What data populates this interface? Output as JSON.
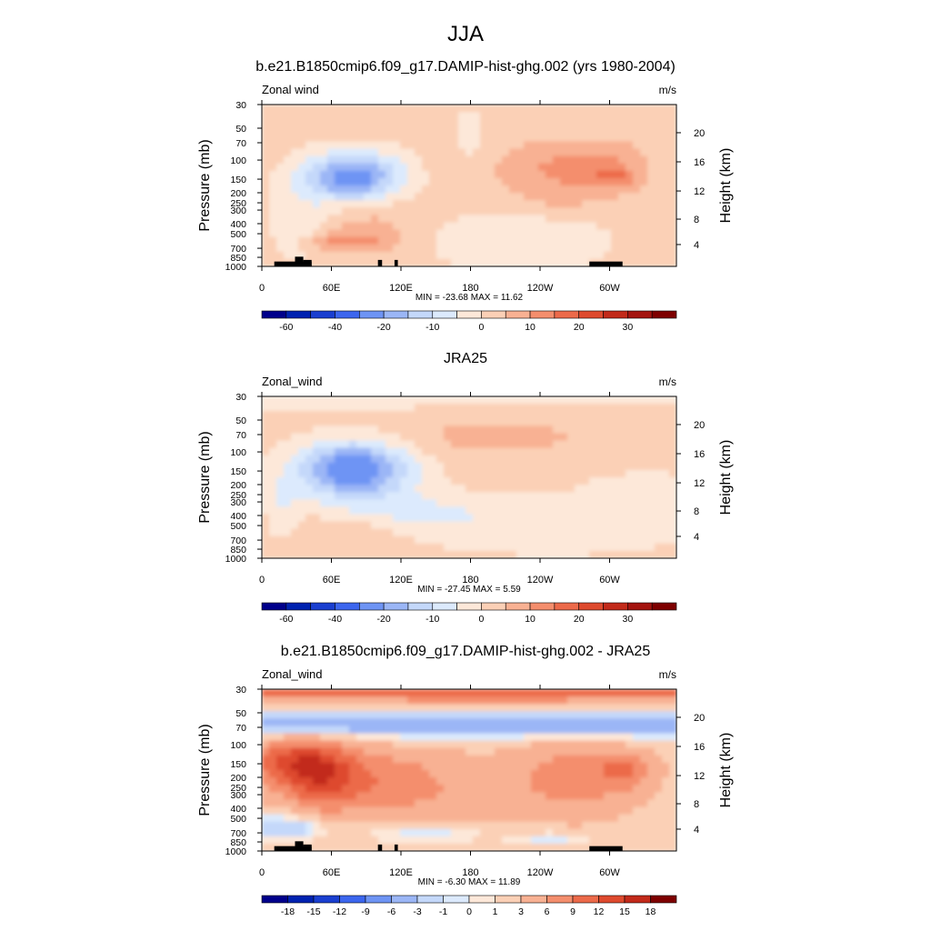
{
  "page_title": "JJA",
  "chart_data": [
    {
      "type": "heatmap",
      "title": "b.e21.B1850cmip6.f09_g17.DAMIP-hist-ghg.002 (yrs 1980-2004)",
      "left_label": "Zonal wind",
      "right_label": "m/s",
      "ylabel": "Pressure (mb)",
      "ylabel_right": "Height (km)",
      "x_ticks": [
        "0",
        "60E",
        "120E",
        "180",
        "120W",
        "60W"
      ],
      "y_ticks": [
        "30",
        "50",
        "70",
        "100",
        "150",
        "200",
        "250",
        "300",
        "400",
        "500",
        "700",
        "850",
        "1000"
      ],
      "y_right_ticks": [
        "20",
        "16",
        "12",
        "8",
        "4"
      ],
      "stats": "MIN = -23.68  MAX =  11.62",
      "min": -23.68,
      "max": 11.62,
      "colorbar_labels": [
        "-60",
        "-40",
        "-20",
        "-10",
        "0",
        "10",
        "20",
        "30"
      ],
      "colorbar_colors": [
        "#00008b",
        "#0022b0",
        "#1a3fd0",
        "#3c66ee",
        "#6e94f4",
        "#9bb6f6",
        "#c4d8fa",
        "#dceafd",
        "#fde8d9",
        "#fbd0b6",
        "#f8b193",
        "#f48e6d",
        "#ec6a4a",
        "#de4a2e",
        "#c22a1a",
        "#a4140f",
        "#7e0000"
      ],
      "colorbar_boundaries": [
        -70,
        -60,
        -50,
        -40,
        -30,
        -20,
        -15,
        -10,
        -5,
        0,
        5,
        10,
        15,
        20,
        25,
        30,
        35
      ]
    },
    {
      "type": "heatmap",
      "title": "JRA25",
      "left_label": "Zonal_wind",
      "right_label": "m/s",
      "ylabel": "Pressure (mb)",
      "ylabel_right": "Height (km)",
      "x_ticks": [
        "0",
        "60E",
        "120E",
        "180",
        "120W",
        "60W"
      ],
      "y_ticks": [
        "30",
        "50",
        "70",
        "100",
        "150",
        "200",
        "250",
        "300",
        "400",
        "500",
        "700",
        "850",
        "1000"
      ],
      "y_right_ticks": [
        "20",
        "16",
        "12",
        "8",
        "4"
      ],
      "stats": "MIN = -27.45  MAX =   5.59",
      "min": -27.45,
      "max": 5.59,
      "colorbar_labels": [
        "-60",
        "-40",
        "-20",
        "-10",
        "0",
        "10",
        "20",
        "30"
      ],
      "colorbar_colors": [
        "#00008b",
        "#0022b0",
        "#1a3fd0",
        "#3c66ee",
        "#6e94f4",
        "#9bb6f6",
        "#c4d8fa",
        "#dceafd",
        "#fde8d9",
        "#fbd0b6",
        "#f8b193",
        "#f48e6d",
        "#ec6a4a",
        "#de4a2e",
        "#c22a1a",
        "#a4140f",
        "#7e0000"
      ],
      "colorbar_boundaries": [
        -70,
        -60,
        -50,
        -40,
        -30,
        -20,
        -15,
        -10,
        -5,
        0,
        5,
        10,
        15,
        20,
        25,
        30,
        35
      ]
    },
    {
      "type": "heatmap",
      "title": "b.e21.B1850cmip6.f09_g17.DAMIP-hist-ghg.002 - JRA25",
      "left_label": "Zonal_wind",
      "right_label": "m/s",
      "ylabel": "Pressure (mb)",
      "ylabel_right": "Height (km)",
      "x_ticks": [
        "0",
        "60E",
        "120E",
        "180",
        "120W",
        "60W"
      ],
      "y_ticks": [
        "30",
        "50",
        "70",
        "100",
        "150",
        "200",
        "250",
        "300",
        "400",
        "500",
        "700",
        "850",
        "1000"
      ],
      "y_right_ticks": [
        "20",
        "16",
        "12",
        "8",
        "4"
      ],
      "stats": "MIN =  -6.30  MAX =  11.89",
      "min": -6.3,
      "max": 11.89,
      "colorbar_labels": [
        "-18",
        "-15",
        "-12",
        "-9",
        "-6",
        "-3",
        "-1",
        "0",
        "1",
        "3",
        "6",
        "9",
        "12",
        "15",
        "18"
      ],
      "colorbar_colors": [
        "#00008b",
        "#0022b0",
        "#1a3fd0",
        "#3c66ee",
        "#6e94f4",
        "#9bb6f6",
        "#c4d8fa",
        "#dceafd",
        "#fde8d9",
        "#fbd0b6",
        "#f8b193",
        "#f48e6d",
        "#ec6a4a",
        "#de4a2e",
        "#c22a1a",
        "#7e0000"
      ],
      "colorbar_boundaries": [
        -21,
        -18,
        -15,
        -12,
        -9,
        -6,
        -3,
        -1,
        0,
        1,
        3,
        6,
        9,
        12,
        15,
        18,
        21
      ]
    }
  ]
}
